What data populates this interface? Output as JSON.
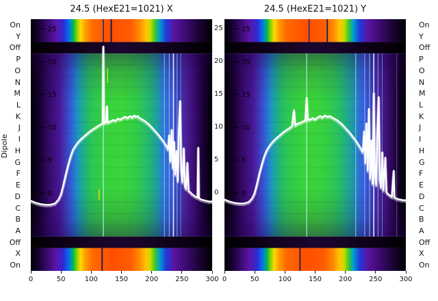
{
  "figure": {
    "background": "#ffffff",
    "dipole_axis_label": "Dipole",
    "trace_color": "#ffffff"
  },
  "axis": {
    "categories": [
      "On",
      "Y",
      "Off",
      "P",
      "O",
      "N",
      "M",
      "L",
      "K",
      "J",
      "I",
      "H",
      "G",
      "F",
      "E",
      "D",
      "C",
      "B",
      "A",
      "Off",
      "X",
      "On"
    ],
    "x_ticks": [
      0,
      50,
      100,
      150,
      200,
      250,
      300
    ],
    "value_ticks": [
      25,
      20,
      15,
      10,
      5,
      0
    ],
    "right_gap_ticks": [
      25,
      20,
      15,
      10,
      5,
      0
    ]
  },
  "palette": {
    "rainbow": [
      [
        0,
        "#000000"
      ],
      [
        0.04,
        "#14002e"
      ],
      [
        0.09,
        "#3a0a6e"
      ],
      [
        0.14,
        "#5c16a8"
      ],
      [
        0.18,
        "#2d2ad6"
      ],
      [
        0.21,
        "#0072f0"
      ],
      [
        0.235,
        "#00b850"
      ],
      [
        0.255,
        "#8cd200"
      ],
      [
        0.275,
        "#ffd900"
      ],
      [
        0.3,
        "#ff9e00"
      ],
      [
        0.34,
        "#ff6a00"
      ],
      [
        0.45,
        "#ff4f00"
      ],
      [
        0.55,
        "#ff5c00"
      ],
      [
        0.6,
        "#ff8a00"
      ],
      [
        0.635,
        "#ffc400"
      ],
      [
        0.66,
        "#c8dc00"
      ],
      [
        0.685,
        "#3cc828"
      ],
      [
        0.71,
        "#00a0d2"
      ],
      [
        0.745,
        "#1e3cdc"
      ],
      [
        0.79,
        "#5a14a0"
      ],
      [
        0.86,
        "#3a0a6e"
      ],
      [
        0.93,
        "#1a0333"
      ],
      [
        1,
        "#000000"
      ]
    ],
    "main": [
      [
        0,
        "#000000"
      ],
      [
        0.05,
        "#160030"
      ],
      [
        0.1,
        "#360a68"
      ],
      [
        0.155,
        "#471694"
      ],
      [
        0.19,
        "#4238b8"
      ],
      [
        0.225,
        "#2f62d8"
      ],
      [
        0.26,
        "#1e96c0"
      ],
      [
        0.3,
        "#20b478"
      ],
      [
        0.34,
        "#2cc653"
      ],
      [
        0.42,
        "#38d23c"
      ],
      [
        0.5,
        "#3bd43a"
      ],
      [
        0.58,
        "#32cc48"
      ],
      [
        0.64,
        "#26bc6a"
      ],
      [
        0.69,
        "#1ea494"
      ],
      [
        0.73,
        "#2b7ad8"
      ],
      [
        0.78,
        "#3b58d8"
      ],
      [
        0.82,
        "#4038b4"
      ],
      [
        0.86,
        "#4c1d95"
      ],
      [
        0.91,
        "#360a68"
      ],
      [
        0.955,
        "#160030"
      ],
      [
        1,
        "#000000"
      ]
    ],
    "off": [
      [
        0,
        "#000000"
      ],
      [
        0.15,
        "#0a0012"
      ],
      [
        0.35,
        "#160424"
      ],
      [
        0.5,
        "#1b0630"
      ],
      [
        0.65,
        "#160424"
      ],
      [
        0.85,
        "#0a0012"
      ],
      [
        1,
        "#000000"
      ]
    ]
  },
  "chart_data": [
    {
      "type": "heatmap",
      "title": "24.5 (HexE21=1021) X",
      "x_range": [
        0,
        300
      ],
      "x_ticks": [
        0,
        50,
        100,
        150,
        200,
        250,
        300
      ],
      "value_ticks": [
        25,
        20,
        15,
        10,
        5,
        0
      ],
      "rows": [
        "On",
        "Y",
        "Off",
        "P",
        "O",
        "N",
        "M",
        "L",
        "K",
        "J",
        "I",
        "H",
        "G",
        "F",
        "E",
        "D",
        "C",
        "B",
        "A",
        "Off",
        "X",
        "On"
      ],
      "bands": [
        {
          "name": "rainbow_top",
          "y0": 0,
          "y1": 0.0909,
          "gradient": "rainbow"
        },
        {
          "name": "off_top",
          "y0": 0.0909,
          "y1": 0.1364,
          "gradient": "off"
        },
        {
          "name": "main",
          "y0": 0.1364,
          "y1": 0.8636,
          "gradient": "main"
        },
        {
          "name": "off_bottom",
          "y0": 0.8636,
          "y1": 0.9091,
          "gradient": "off"
        },
        {
          "name": "rainbow_bottom",
          "y0": 0.9091,
          "y1": 1,
          "gradient": "rainbow"
        }
      ],
      "stripes": [
        {
          "x": 120,
          "w": 1.2,
          "color": "#c8ffff",
          "opacity": 0.85,
          "band": "main"
        },
        {
          "x": 127,
          "w": 1.2,
          "color": "#d2ff3c",
          "opacity": 0.9,
          "band": "main",
          "y0": 0.08,
          "y1": 0.16
        },
        {
          "x": 113,
          "w": 1.4,
          "color": "#ffe100",
          "opacity": 0.9,
          "band": "main",
          "y0": 0.74,
          "y1": 0.8
        },
        {
          "x": 221,
          "w": 1,
          "color": "#8cd8ff",
          "opacity": 0.8,
          "band": "main"
        },
        {
          "x": 229,
          "w": 1,
          "color": "#a0e4ff",
          "opacity": 0.8,
          "band": "main"
        },
        {
          "x": 236,
          "w": 1.6,
          "color": "#e6f8ff",
          "opacity": 0.95,
          "band": "main"
        },
        {
          "x": 242,
          "w": 1,
          "color": "#8cd8ff",
          "opacity": 0.75,
          "band": "main"
        },
        {
          "x": 248,
          "w": 1,
          "color": "#78c0ff",
          "opacity": 0.6,
          "band": "main"
        },
        {
          "x": 120,
          "w": 1.6,
          "color": "#001d7a",
          "opacity": 0.85,
          "band": "rainbow_top"
        },
        {
          "x": 133,
          "w": 2,
          "color": "#00125c",
          "opacity": 0.9,
          "band": "rainbow_top"
        },
        {
          "x": 118,
          "w": 2,
          "color": "#00125c",
          "opacity": 0.85,
          "band": "rainbow_bottom"
        }
      ],
      "line": {
        "name": "white-trace",
        "color": "#ffffff",
        "points": [
          [
            0,
            -1.2
          ],
          [
            8,
            -1.5
          ],
          [
            16,
            -1.7
          ],
          [
            24,
            -1.8
          ],
          [
            32,
            -1.8
          ],
          [
            40,
            -1.6
          ],
          [
            46,
            -1.0
          ],
          [
            50,
            -0.2
          ],
          [
            54,
            1.2
          ],
          [
            58,
            2.8
          ],
          [
            62,
            4.3
          ],
          [
            66,
            5.6
          ],
          [
            70,
            6.6
          ],
          [
            74,
            7.2
          ],
          [
            78,
            7.7
          ],
          [
            83,
            8.2
          ],
          [
            88,
            8.6
          ],
          [
            93,
            9.0
          ],
          [
            98,
            9.4
          ],
          [
            103,
            9.7
          ],
          [
            108,
            10.0
          ],
          [
            113,
            10.3
          ],
          [
            117,
            10.5
          ],
          [
            119,
            10.6
          ],
          [
            120,
            22.3
          ],
          [
            121,
            10.6
          ],
          [
            124,
            10.7
          ],
          [
            126,
            13.2
          ],
          [
            127,
            10.7
          ],
          [
            132,
            10.9
          ],
          [
            136,
            11.1
          ],
          [
            140,
            11.0
          ],
          [
            144,
            11.3
          ],
          [
            148,
            11.2
          ],
          [
            152,
            11.4
          ],
          [
            156,
            11.6
          ],
          [
            160,
            11.4
          ],
          [
            164,
            11.7
          ],
          [
            168,
            11.5
          ],
          [
            171,
            11.8
          ],
          [
            174,
            11.6
          ],
          [
            177,
            11.7
          ],
          [
            180,
            11.4
          ],
          [
            184,
            11.2
          ],
          [
            188,
            11.0
          ],
          [
            192,
            10.7
          ],
          [
            196,
            10.4
          ],
          [
            200,
            10.0
          ],
          [
            205,
            9.5
          ],
          [
            210,
            9.0
          ],
          [
            215,
            8.4
          ],
          [
            220,
            7.8
          ],
          [
            224,
            7.2
          ],
          [
            227,
            6.6
          ],
          [
            229,
            8.8
          ],
          [
            231,
            4.8
          ],
          [
            233,
            9.6
          ],
          [
            235,
            3.8
          ],
          [
            237,
            7.8
          ],
          [
            239,
            2.8
          ],
          [
            241,
            6.4
          ],
          [
            243,
            1.8
          ],
          [
            245,
            9.2
          ],
          [
            247,
            14.0
          ],
          [
            249,
            3.4
          ],
          [
            251,
            1.6
          ],
          [
            253,
            6.8
          ],
          [
            255,
            1.0
          ],
          [
            257,
            0.6
          ],
          [
            259,
            4.6
          ],
          [
            261,
            0.3
          ],
          [
            264,
            0.1
          ],
          [
            267,
            -0.2
          ],
          [
            270,
            -0.4
          ],
          [
            273,
            -0.6
          ],
          [
            276,
            -0.7
          ],
          [
            277,
            6.9
          ],
          [
            278,
            -0.8
          ],
          [
            282,
            -1.0
          ],
          [
            286,
            -1.1
          ],
          [
            290,
            -1.2
          ],
          [
            295,
            -1.3
          ],
          [
            300,
            -1.3
          ]
        ]
      }
    },
    {
      "type": "heatmap",
      "title": "24.5 (HexE21=1021) Y",
      "x_range": [
        0,
        300
      ],
      "x_ticks": [
        0,
        50,
        100,
        150,
        200,
        250,
        300
      ],
      "value_ticks": [
        25,
        20,
        15,
        10,
        5,
        0
      ],
      "rows": [
        "On",
        "Y",
        "Off",
        "P",
        "O",
        "N",
        "M",
        "L",
        "K",
        "J",
        "I",
        "H",
        "G",
        "F",
        "E",
        "D",
        "C",
        "B",
        "A",
        "Off",
        "X",
        "On"
      ],
      "bands": [
        {
          "name": "rainbow_top",
          "y0": 0,
          "y1": 0.0909,
          "gradient": "rainbow"
        },
        {
          "name": "off_top",
          "y0": 0.0909,
          "y1": 0.1364,
          "gradient": "off"
        },
        {
          "name": "main",
          "y0": 0.1364,
          "y1": 0.8636,
          "gradient": "main"
        },
        {
          "name": "off_bottom",
          "y0": 0.8636,
          "y1": 0.9091,
          "gradient": "off"
        },
        {
          "name": "rainbow_bottom",
          "y0": 0.9091,
          "y1": 1,
          "gradient": "rainbow"
        }
      ],
      "stripes": [
        {
          "x": 136,
          "w": 1.2,
          "color": "#c8ffff",
          "opacity": 0.8,
          "band": "main"
        },
        {
          "x": 217,
          "w": 1.4,
          "color": "#50e878",
          "opacity": 0.9,
          "band": "main"
        },
        {
          "x": 232,
          "w": 1,
          "color": "#8cd8ff",
          "opacity": 0.8,
          "band": "main"
        },
        {
          "x": 240,
          "w": 1,
          "color": "#a0e4ff",
          "opacity": 0.8,
          "band": "main"
        },
        {
          "x": 247,
          "w": 1.6,
          "color": "#e6f8ff",
          "opacity": 0.95,
          "band": "main"
        },
        {
          "x": 254,
          "w": 1,
          "color": "#8cd8ff",
          "opacity": 0.75,
          "band": "main"
        },
        {
          "x": 261,
          "w": 1,
          "color": "#78c0ff",
          "opacity": 0.6,
          "band": "main"
        },
        {
          "x": 285,
          "w": 1,
          "color": "#b09ae0",
          "opacity": 0.5,
          "band": "main"
        },
        {
          "x": 140,
          "w": 1.6,
          "color": "#001d7a",
          "opacity": 0.85,
          "band": "rainbow_top"
        },
        {
          "x": 170,
          "w": 2,
          "color": "#00125c",
          "opacity": 0.85,
          "band": "rainbow_top"
        },
        {
          "x": 125,
          "w": 2,
          "color": "#00125c",
          "opacity": 0.8,
          "band": "rainbow_bottom"
        }
      ],
      "line": {
        "name": "white-trace",
        "color": "#ffffff",
        "points": [
          [
            0,
            -1.0
          ],
          [
            8,
            -1.3
          ],
          [
            16,
            -1.5
          ],
          [
            24,
            -1.6
          ],
          [
            32,
            -1.6
          ],
          [
            40,
            -1.4
          ],
          [
            46,
            -0.8
          ],
          [
            50,
            0.0
          ],
          [
            54,
            1.4
          ],
          [
            58,
            3.0
          ],
          [
            62,
            4.4
          ],
          [
            66,
            5.6
          ],
          [
            70,
            6.5
          ],
          [
            74,
            7.1
          ],
          [
            78,
            7.6
          ],
          [
            83,
            8.1
          ],
          [
            88,
            8.5
          ],
          [
            93,
            8.9
          ],
          [
            98,
            9.3
          ],
          [
            103,
            9.6
          ],
          [
            108,
            9.9
          ],
          [
            112,
            10.2
          ],
          [
            115,
            12.6
          ],
          [
            117,
            10.3
          ],
          [
            122,
            10.6
          ],
          [
            126,
            10.7
          ],
          [
            130,
            10.9
          ],
          [
            134,
            11.0
          ],
          [
            136,
            14.5
          ],
          [
            138,
            11.1
          ],
          [
            142,
            11.2
          ],
          [
            146,
            11.4
          ],
          [
            150,
            11.2
          ],
          [
            154,
            11.5
          ],
          [
            158,
            11.7
          ],
          [
            162,
            11.5
          ],
          [
            166,
            11.8
          ],
          [
            170,
            11.6
          ],
          [
            174,
            11.7
          ],
          [
            178,
            11.5
          ],
          [
            182,
            11.3
          ],
          [
            186,
            11.1
          ],
          [
            190,
            10.8
          ],
          [
            194,
            10.5
          ],
          [
            198,
            10.1
          ],
          [
            203,
            9.6
          ],
          [
            208,
            9.1
          ],
          [
            213,
            8.5
          ],
          [
            218,
            7.9
          ],
          [
            222,
            7.3
          ],
          [
            226,
            6.7
          ],
          [
            229,
            6.2
          ],
          [
            231,
            9.4
          ],
          [
            233,
            4.6
          ],
          [
            235,
            10.6
          ],
          [
            237,
            3.4
          ],
          [
            239,
            12.8
          ],
          [
            241,
            2.2
          ],
          [
            243,
            8.0
          ],
          [
            245,
            1.4
          ],
          [
            247,
            15.2
          ],
          [
            249,
            3.0
          ],
          [
            251,
            1.2
          ],
          [
            253,
            9.6
          ],
          [
            255,
            14.6
          ],
          [
            257,
            2.0
          ],
          [
            259,
            0.8
          ],
          [
            261,
            6.2
          ],
          [
            263,
            0.4
          ],
          [
            266,
            5.4
          ],
          [
            268,
            0.1
          ],
          [
            271,
            -0.2
          ],
          [
            274,
            -0.4
          ],
          [
            277,
            -0.6
          ],
          [
            280,
            3.4
          ],
          [
            281,
            -0.7
          ],
          [
            286,
            -0.9
          ],
          [
            290,
            -1.0
          ],
          [
            295,
            -1.1
          ],
          [
            300,
            -1.1
          ]
        ]
      }
    }
  ]
}
